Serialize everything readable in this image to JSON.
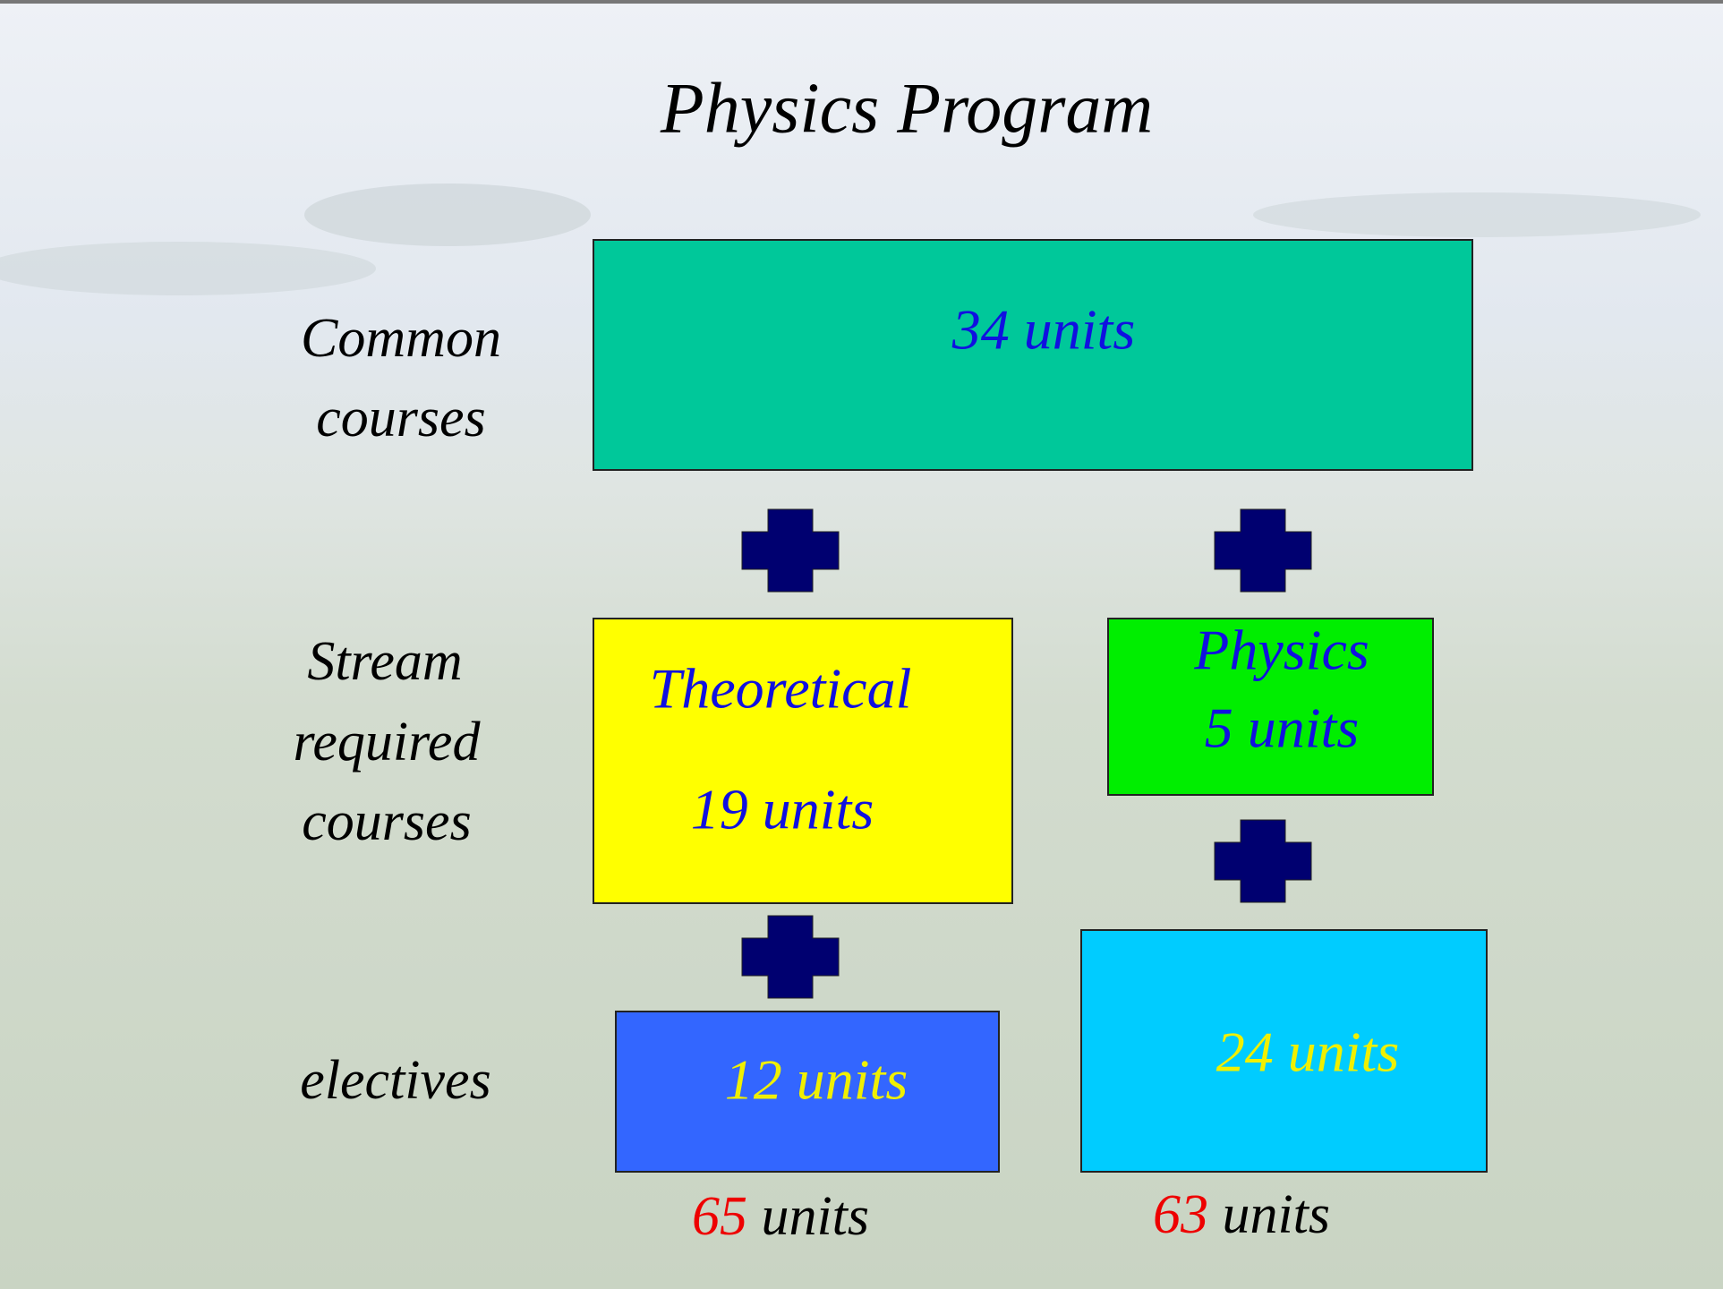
{
  "title": "Physics Program",
  "row_labels": [
    {
      "lines": [
        "Common",
        "courses"
      ]
    },
    {
      "lines": [
        "Stream",
        "required",
        "courses"
      ]
    },
    {
      "lines": [
        "electives"
      ]
    }
  ],
  "boxes": {
    "common": {
      "lines": [
        "34 units"
      ]
    },
    "theoretical": {
      "lines": [
        "Theoretical",
        "19 units"
      ]
    },
    "physics": {
      "lines": [
        "Physics",
        "5 units"
      ]
    },
    "theoretical_electives": {
      "lines": [
        "12 units"
      ]
    },
    "physics_electives": {
      "lines": [
        "24 units"
      ]
    }
  },
  "totals": [
    {
      "number": "65",
      "unit": "units"
    },
    {
      "number": "63",
      "unit": "units"
    }
  ]
}
